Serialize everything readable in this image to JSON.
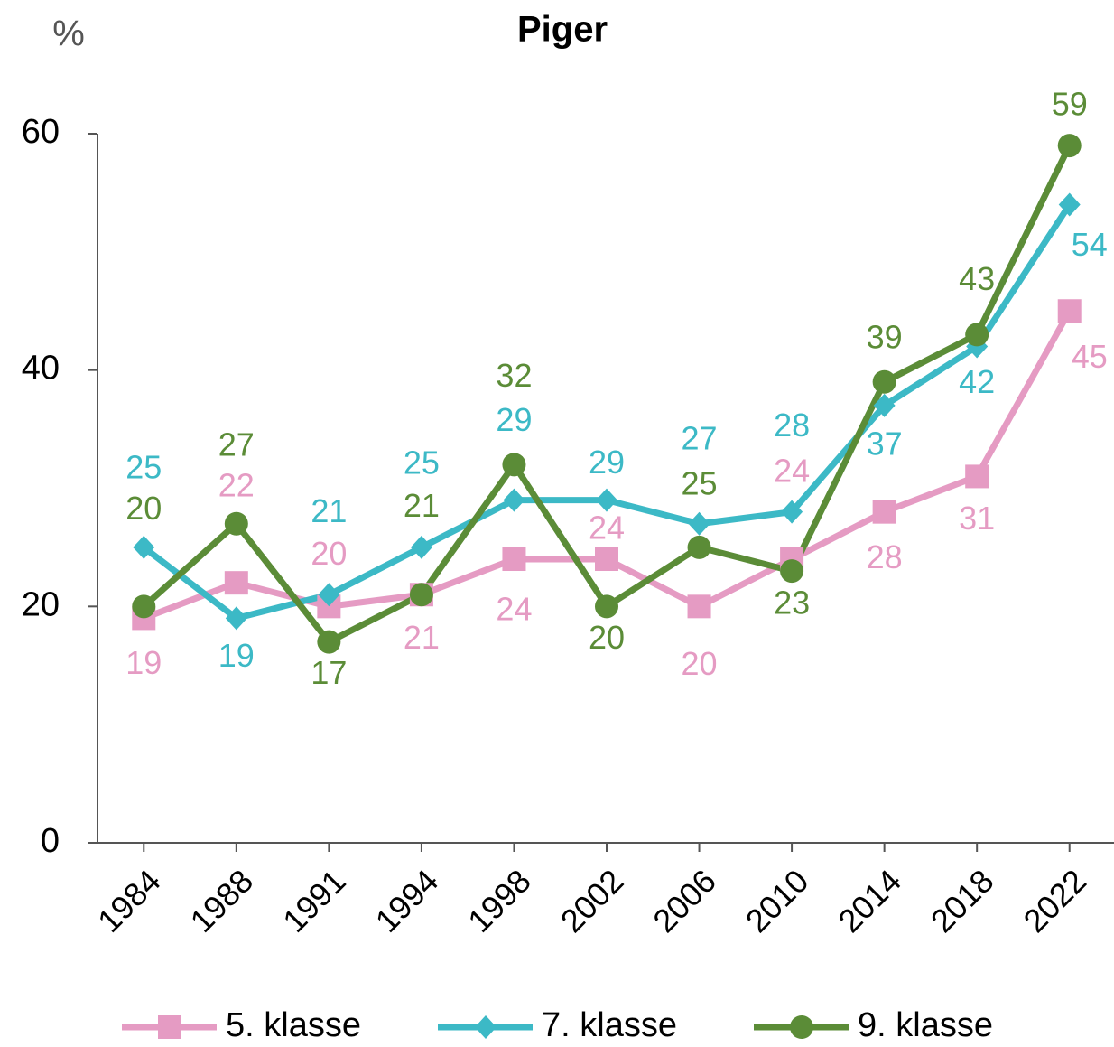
{
  "chart_data": {
    "type": "line",
    "title": "Piger",
    "y_axis_label": "%",
    "categories": [
      "1984",
      "1988",
      "1991",
      "1994",
      "1998",
      "2002",
      "2006",
      "2010",
      "2014",
      "2018",
      "2022"
    ],
    "series": [
      {
        "name": "5. klasse",
        "color": "#e59bc3",
        "marker": "square",
        "values": [
          19,
          22,
          20,
          21,
          24,
          24,
          20,
          24,
          28,
          31,
          45
        ]
      },
      {
        "name": "7. klasse",
        "color": "#3cb9c6",
        "marker": "diamond",
        "values": [
          25,
          19,
          21,
          25,
          29,
          29,
          27,
          28,
          37,
          42,
          54
        ]
      },
      {
        "name": "9. klasse",
        "color": "#5b8c37",
        "marker": "circle",
        "values": [
          20,
          27,
          17,
          21,
          32,
          20,
          25,
          23,
          39,
          43,
          59
        ]
      }
    ],
    "ylim": [
      0,
      60
    ],
    "yticks": [
      0,
      20,
      40,
      60
    ],
    "legend": "bottom"
  }
}
